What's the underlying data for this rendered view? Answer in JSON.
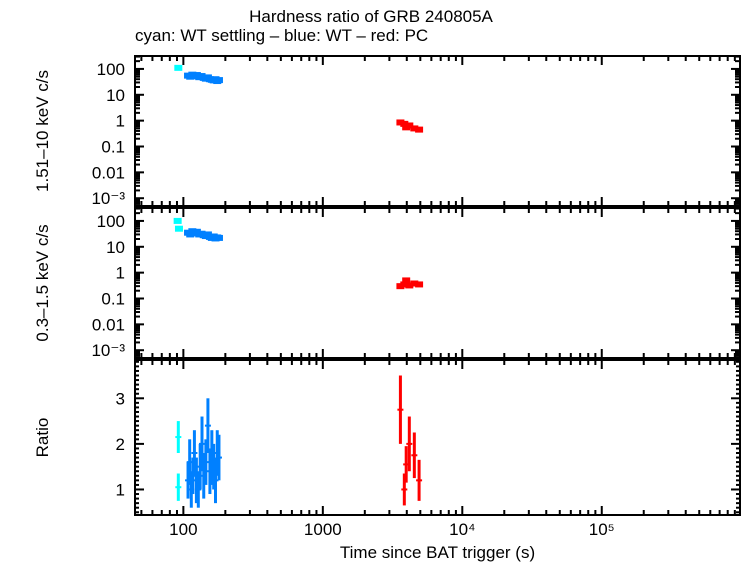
{
  "chart_data": {
    "type": "scatter",
    "title": "Hardness ratio of GRB 240805A",
    "subtitle": "cyan: WT settling – blue: WT – red: PC",
    "xlabel": "Time since BAT trigger (s)",
    "xscale": "log",
    "xlim": [
      45,
      980000
    ],
    "xticks": [
      {
        "v": 100,
        "label": "100"
      },
      {
        "v": 1000,
        "label": "1000"
      },
      {
        "v": 10000,
        "label": "10⁴"
      },
      {
        "v": 100000,
        "label": "10⁵"
      }
    ],
    "colors": {
      "wt_settling": "#00ffff",
      "wt": "#0080ff",
      "pc": "#ff0000"
    },
    "panels": [
      {
        "ylabel": "1.51–10 keV c/s",
        "yscale": "log",
        "ylim": [
          0.0005,
          316
        ],
        "yticks": [
          {
            "v": 100,
            "label": "100"
          },
          {
            "v": 10,
            "label": "10"
          },
          {
            "v": 1,
            "label": "1"
          },
          {
            "v": 0.1,
            "label": "0.1"
          },
          {
            "v": 0.01,
            "label": "0.01"
          },
          {
            "v": 0.001,
            "label": "10⁻³"
          }
        ],
        "series": [
          {
            "key": "wt_settling",
            "x": [
              92
            ],
            "y": [
              110
            ]
          },
          {
            "key": "wt",
            "x": [
              108,
              112,
              116,
              120,
              125,
              130,
              135,
              140,
              145,
              150,
              155,
              160,
              165,
              170,
              175,
              180
            ],
            "y": [
              55,
              50,
              60,
              52,
              58,
              48,
              53,
              45,
              42,
              47,
              40,
              38,
              36,
              40,
              34,
              37
            ]
          },
          {
            "key": "pc",
            "x": [
              3600,
              3840,
              3960,
              4170,
              4530,
              4900
            ],
            "y": [
              0.85,
              0.75,
              0.55,
              0.65,
              0.5,
              0.45
            ]
          }
        ]
      },
      {
        "ylabel": "0.3–1.5 keV c/s",
        "yscale": "log",
        "ylim": [
          0.0005,
          316
        ],
        "yticks": [
          {
            "v": 100,
            "label": "100"
          },
          {
            "v": 10,
            "label": "10"
          },
          {
            "v": 1,
            "label": "1"
          },
          {
            "v": 0.1,
            "label": "0.1"
          },
          {
            "v": 0.01,
            "label": "0.01"
          },
          {
            "v": 0.001,
            "label": "10⁻³"
          }
        ],
        "series": [
          {
            "key": "wt_settling",
            "x": [
              91,
              93
            ],
            "y": [
              100,
              50
            ]
          },
          {
            "key": "wt",
            "x": [
              108,
              112,
              116,
              120,
              125,
              130,
              135,
              140,
              145,
              150,
              155,
              160,
              165,
              170,
              175,
              180
            ],
            "y": [
              35,
              30,
              40,
              33,
              38,
              30,
              32,
              28,
              26,
              30,
              24,
              22,
              25,
              21,
              23,
              22
            ]
          },
          {
            "key": "pc",
            "x": [
              3600,
              3840,
              3960,
              4170,
              4530,
              4900
            ],
            "y": [
              0.3,
              0.35,
              0.5,
              0.32,
              0.38,
              0.35
            ]
          }
        ]
      },
      {
        "ylabel": "Ratio",
        "yscale": "linear",
        "ylim": [
          0.44,
          3.84
        ],
        "yticks": [
          {
            "v": 1,
            "label": "1"
          },
          {
            "v": 2,
            "label": "2"
          },
          {
            "v": 3,
            "label": "3"
          }
        ],
        "series": [
          {
            "key": "wt_settling",
            "x": [
              92,
              92
            ],
            "y": [
              2.15,
              1.05
            ],
            "err": [
              0.35,
              0.3
            ]
          },
          {
            "key": "wt",
            "x": [
              108,
              111,
              114,
              117,
              120,
              124,
              128,
              132,
              136,
              140,
              145,
              150,
              155,
              160,
              165,
              170,
              175,
              180
            ],
            "y": [
              1.2,
              1.6,
              1.0,
              1.3,
              1.8,
              1.2,
              1.0,
              1.5,
              2.0,
              1.3,
              1.6,
              2.4,
              1.4,
              1.7,
              1.5,
              1.2,
              1.8,
              1.7
            ],
            "err": [
              0.4,
              0.5,
              0.4,
              0.4,
              0.5,
              0.5,
              0.4,
              0.5,
              0.6,
              0.5,
              0.5,
              0.6,
              0.5,
              0.6,
              0.5,
              0.5,
              0.5,
              0.5
            ]
          },
          {
            "key": "pc",
            "x": [
              3600,
              3840,
              3960,
              4170,
              4530,
              4900
            ],
            "y": [
              2.75,
              1.0,
              1.55,
              2.0,
              1.75,
              1.2
            ],
            "err": [
              0.75,
              0.35,
              0.4,
              0.6,
              0.5,
              0.45
            ]
          }
        ]
      }
    ]
  }
}
